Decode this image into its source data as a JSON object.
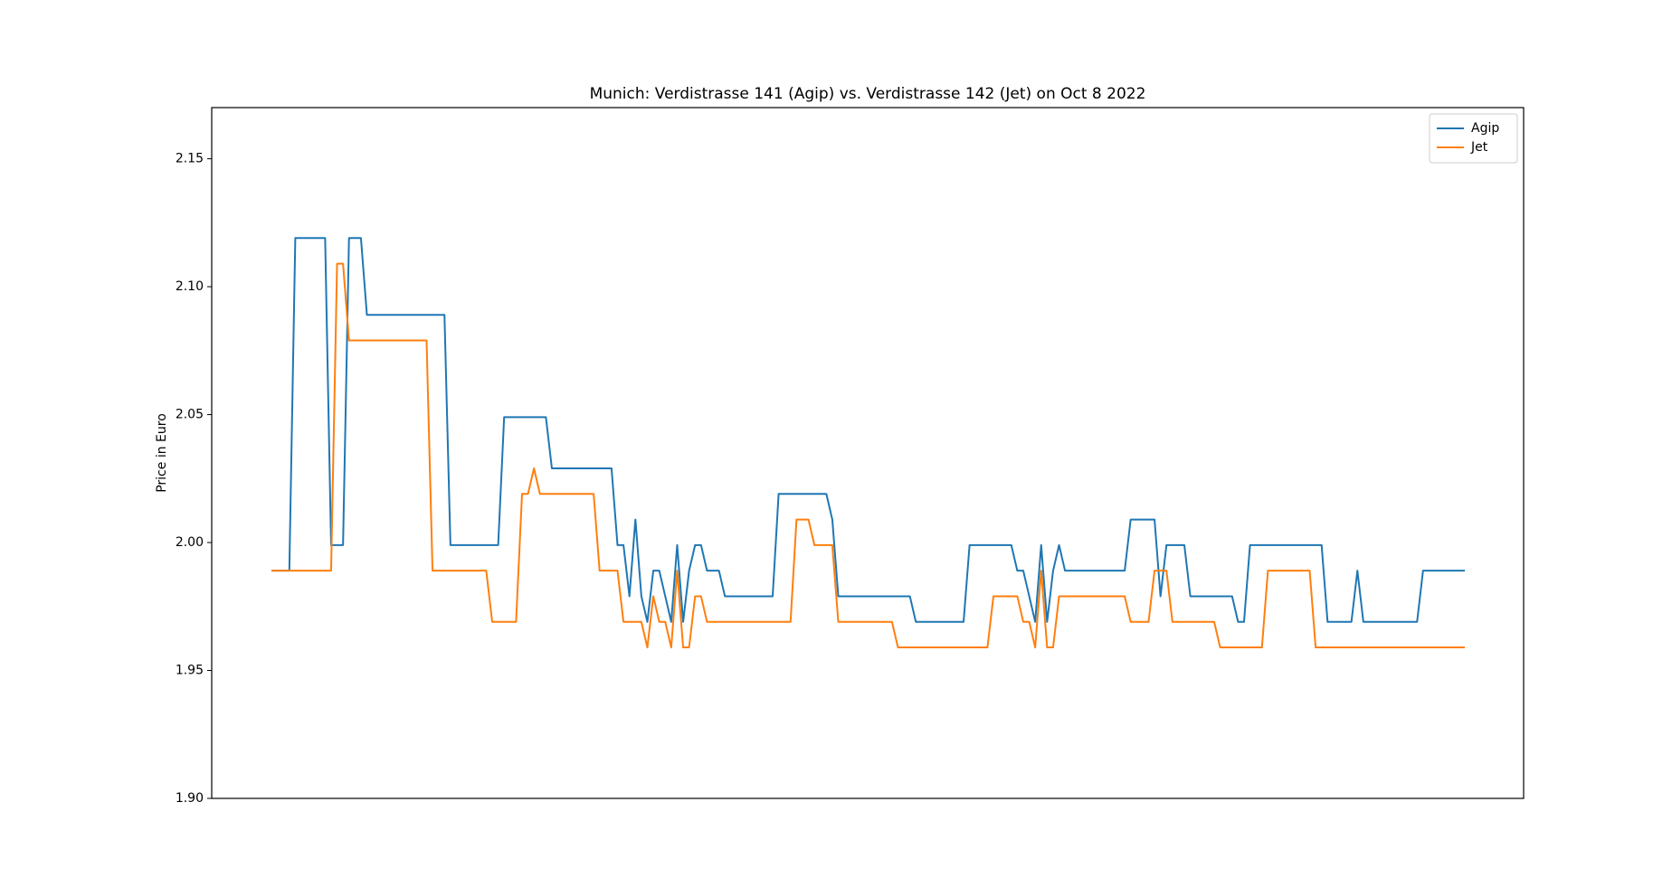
{
  "chart_data": {
    "type": "line",
    "title": "Munich: Verdistrasse 141 (Agip) vs. Verdistrasse 142 (Jet) on Oct 8 2022",
    "y_label": "Price in Euro",
    "ylim": [
      1.9,
      2.17
    ],
    "yticks": [
      {
        "value": 1.9,
        "label": "1.90"
      },
      1.95,
      {
        "value": 2.0,
        "label": "2.00"
      },
      2.05,
      {
        "value": 2.1,
        "label": "2.10"
      },
      2.15
    ],
    "legend": "upper right",
    "grid": false,
    "series": [
      {
        "name": "Agip",
        "color": "#1f77b4",
        "values": [
          1.989,
          1.989,
          1.989,
          1.989,
          2.119,
          2.119,
          2.119,
          2.119,
          2.119,
          2.119,
          1.999,
          1.999,
          1.999,
          2.119,
          2.119,
          2.119,
          2.089,
          2.089,
          2.089,
          2.089,
          2.089,
          2.089,
          2.089,
          2.089,
          2.089,
          2.089,
          2.089,
          2.089,
          2.089,
          2.089,
          1.999,
          1.999,
          1.999,
          1.999,
          1.999,
          1.999,
          1.999,
          1.999,
          1.999,
          2.049,
          2.049,
          2.049,
          2.049,
          2.049,
          2.049,
          2.049,
          2.049,
          2.029,
          2.029,
          2.029,
          2.029,
          2.029,
          2.029,
          2.029,
          2.029,
          2.029,
          2.029,
          2.029,
          1.999,
          1.999,
          1.979,
          2.009,
          1.979,
          1.969,
          1.989,
          1.989,
          1.979,
          1.969,
          1.999,
          1.969,
          1.989,
          1.999,
          1.999,
          1.989,
          1.989,
          1.989,
          1.979,
          1.979,
          1.979,
          1.979,
          1.979,
          1.979,
          1.979,
          1.979,
          1.979,
          2.019,
          2.019,
          2.019,
          2.019,
          2.019,
          2.019,
          2.019,
          2.019,
          2.019,
          2.009,
          1.979,
          1.979,
          1.979,
          1.979,
          1.979,
          1.979,
          1.979,
          1.979,
          1.979,
          1.979,
          1.979,
          1.979,
          1.979,
          1.969,
          1.969,
          1.969,
          1.969,
          1.969,
          1.969,
          1.969,
          1.969,
          1.969,
          1.999,
          1.999,
          1.999,
          1.999,
          1.999,
          1.999,
          1.999,
          1.999,
          1.989,
          1.989,
          1.979,
          1.969,
          1.999,
          1.969,
          1.989,
          1.999,
          1.989,
          1.989,
          1.989,
          1.989,
          1.989,
          1.989,
          1.989,
          1.989,
          1.989,
          1.989,
          1.989,
          2.009,
          2.009,
          2.009,
          2.009,
          2.009,
          1.979,
          1.999,
          1.999,
          1.999,
          1.999,
          1.979,
          1.979,
          1.979,
          1.979,
          1.979,
          1.979,
          1.979,
          1.979,
          1.969,
          1.969,
          1.999,
          1.999,
          1.999,
          1.999,
          1.999,
          1.999,
          1.999,
          1.999,
          1.999,
          1.999,
          1.999,
          1.999,
          1.999,
          1.969,
          1.969,
          1.969,
          1.969,
          1.969,
          1.989,
          1.969,
          1.969,
          1.969,
          1.969,
          1.969,
          1.969,
          1.969,
          1.969,
          1.969,
          1.969,
          1.989,
          1.989,
          1.989,
          1.989,
          1.989,
          1.989,
          1.989,
          1.989
        ]
      },
      {
        "name": "Jet",
        "color": "#ff7f0e",
        "values": [
          1.989,
          1.989,
          1.989,
          1.989,
          1.989,
          1.989,
          1.989,
          1.989,
          1.989,
          1.989,
          1.989,
          2.109,
          2.109,
          2.079,
          2.079,
          2.079,
          2.079,
          2.079,
          2.079,
          2.079,
          2.079,
          2.079,
          2.079,
          2.079,
          2.079,
          2.079,
          2.079,
          1.989,
          1.989,
          1.989,
          1.989,
          1.989,
          1.989,
          1.989,
          1.989,
          1.989,
          1.989,
          1.969,
          1.969,
          1.969,
          1.969,
          1.969,
          2.019,
          2.019,
          2.029,
          2.019,
          2.019,
          2.019,
          2.019,
          2.019,
          2.019,
          2.019,
          2.019,
          2.019,
          2.019,
          1.989,
          1.989,
          1.989,
          1.989,
          1.969,
          1.969,
          1.969,
          1.969,
          1.959,
          1.979,
          1.969,
          1.969,
          1.959,
          1.989,
          1.959,
          1.959,
          1.979,
          1.979,
          1.969,
          1.969,
          1.969,
          1.969,
          1.969,
          1.969,
          1.969,
          1.969,
          1.969,
          1.969,
          1.969,
          1.969,
          1.969,
          1.969,
          1.969,
          2.009,
          2.009,
          2.009,
          1.999,
          1.999,
          1.999,
          1.999,
          1.969,
          1.969,
          1.969,
          1.969,
          1.969,
          1.969,
          1.969,
          1.969,
          1.969,
          1.969,
          1.959,
          1.959,
          1.959,
          1.959,
          1.959,
          1.959,
          1.959,
          1.959,
          1.959,
          1.959,
          1.959,
          1.959,
          1.959,
          1.959,
          1.959,
          1.959,
          1.979,
          1.979,
          1.979,
          1.979,
          1.979,
          1.969,
          1.969,
          1.959,
          1.989,
          1.959,
          1.959,
          1.979,
          1.979,
          1.979,
          1.979,
          1.979,
          1.979,
          1.979,
          1.979,
          1.979,
          1.979,
          1.979,
          1.979,
          1.969,
          1.969,
          1.969,
          1.969,
          1.989,
          1.989,
          1.989,
          1.969,
          1.969,
          1.969,
          1.969,
          1.969,
          1.969,
          1.969,
          1.969,
          1.959,
          1.959,
          1.959,
          1.959,
          1.959,
          1.959,
          1.959,
          1.959,
          1.989,
          1.989,
          1.989,
          1.989,
          1.989,
          1.989,
          1.989,
          1.989,
          1.959,
          1.959,
          1.959,
          1.959,
          1.959,
          1.959,
          1.959,
          1.959,
          1.959,
          1.959,
          1.959,
          1.959,
          1.959,
          1.959,
          1.959,
          1.959,
          1.959,
          1.959,
          1.959,
          1.959,
          1.959,
          1.959,
          1.959,
          1.959,
          1.959,
          1.959
        ]
      }
    ]
  }
}
